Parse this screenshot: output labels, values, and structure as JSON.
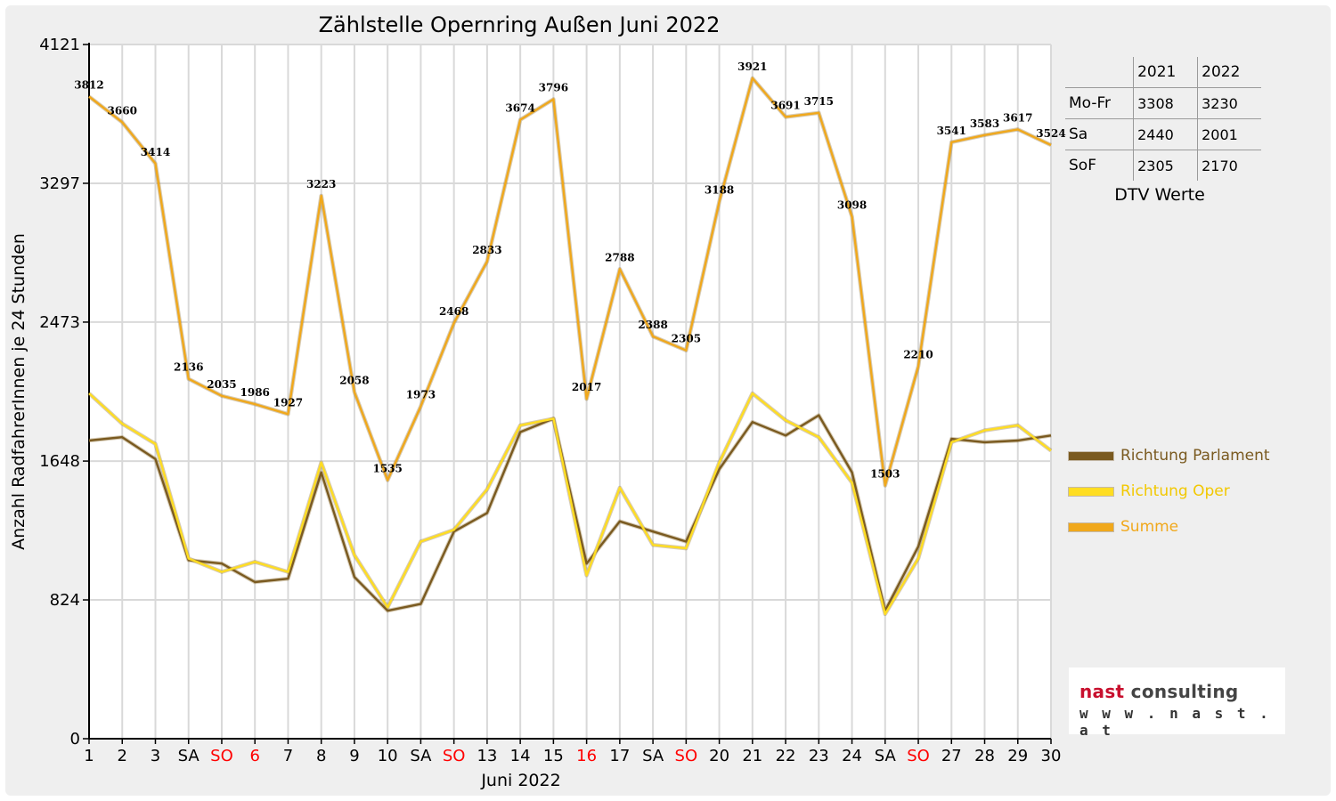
{
  "colors": {
    "parlament": "#7a5a20",
    "oper": "#ffdd22",
    "summe": "#f0a81c",
    "weekend_tick": "#ff0000",
    "grid": "#d9d9d9",
    "plot_bg": "#ffffff"
  },
  "dtv": {
    "years": [
      "2021",
      "2022"
    ],
    "rows": [
      {
        "label": "Mo-Fr",
        "v2021": "3308",
        "v2022": "3230"
      },
      {
        "label": "Sa",
        "v2021": "2440",
        "v2022": "2001"
      },
      {
        "label": "SoF",
        "v2021": "2305",
        "v2022": "2170"
      }
    ],
    "caption": "DTV Werte"
  },
  "logo": {
    "brand_part1": "nast",
    "brand_part2": "consulting",
    "url": "w w w . n a s t . a t"
  },
  "chart_data": {
    "type": "line",
    "title": "Zählstelle Opernring Außen Juni 2022",
    "xlabel": "Juni 2022",
    "ylabel": "Anzahl RadfahrerInnen je 24 Stunden",
    "ylim": [
      0,
      4121
    ],
    "yticks": [
      0,
      824,
      1648,
      2473,
      3297,
      4121
    ],
    "grid": true,
    "legend_position": "right",
    "categories": [
      "1",
      "2",
      "3",
      "SA",
      "SO",
      "6",
      "7",
      "8",
      "9",
      "10",
      "SA",
      "SO",
      "13",
      "14",
      "15",
      "16",
      "17",
      "SA",
      "SO",
      "20",
      "21",
      "22",
      "23",
      "24",
      "SA",
      "SO",
      "27",
      "28",
      "29",
      "30"
    ],
    "red_categories": [
      4,
      5,
      11,
      15,
      18,
      25
    ],
    "series": [
      {
        "name": "Richtung Parlament",
        "color_key": "parlament",
        "values": [
          1770,
          1790,
          1660,
          1060,
          1040,
          930,
          950,
          1580,
          960,
          760,
          800,
          1230,
          1340,
          1820,
          1900,
          1040,
          1290,
          1230,
          1170,
          1600,
          1880,
          1800,
          1920,
          1580,
          760,
          1140,
          1780,
          1760,
          1770,
          1800
        ]
      },
      {
        "name": "Richtung Oper",
        "color_key": "oper",
        "values": [
          2050,
          1870,
          1750,
          1070,
          990,
          1050,
          990,
          1640,
          1090,
          780,
          1170,
          1240,
          1480,
          1860,
          1900,
          970,
          1490,
          1150,
          1130,
          1640,
          2050,
          1890,
          1790,
          1520,
          740,
          1070,
          1760,
          1830,
          1860,
          1710
        ]
      },
      {
        "name": "Summe",
        "color_key": "summe",
        "values": [
          3812,
          3660,
          3414,
          2136,
          2035,
          1986,
          1927,
          3223,
          2058,
          1535,
          1973,
          2468,
          2833,
          3674,
          3796,
          2017,
          2788,
          2388,
          2305,
          3188,
          3921,
          3691,
          3715,
          3098,
          1503,
          2210,
          3541,
          3583,
          3617,
          3524
        ],
        "labels": [
          "3812",
          "3660",
          "3414",
          "2136",
          "2035",
          "1986",
          "1927",
          "3223",
          "2058",
          "1535",
          "1973",
          "2468",
          "2833",
          "3674",
          "3796",
          "2017",
          "2788",
          "2388",
          "2305",
          "3188",
          "3921",
          "3691",
          "3715",
          "3098",
          "1503",
          "2210",
          "3541",
          "3583",
          "3617",
          "3524"
        ]
      }
    ]
  }
}
